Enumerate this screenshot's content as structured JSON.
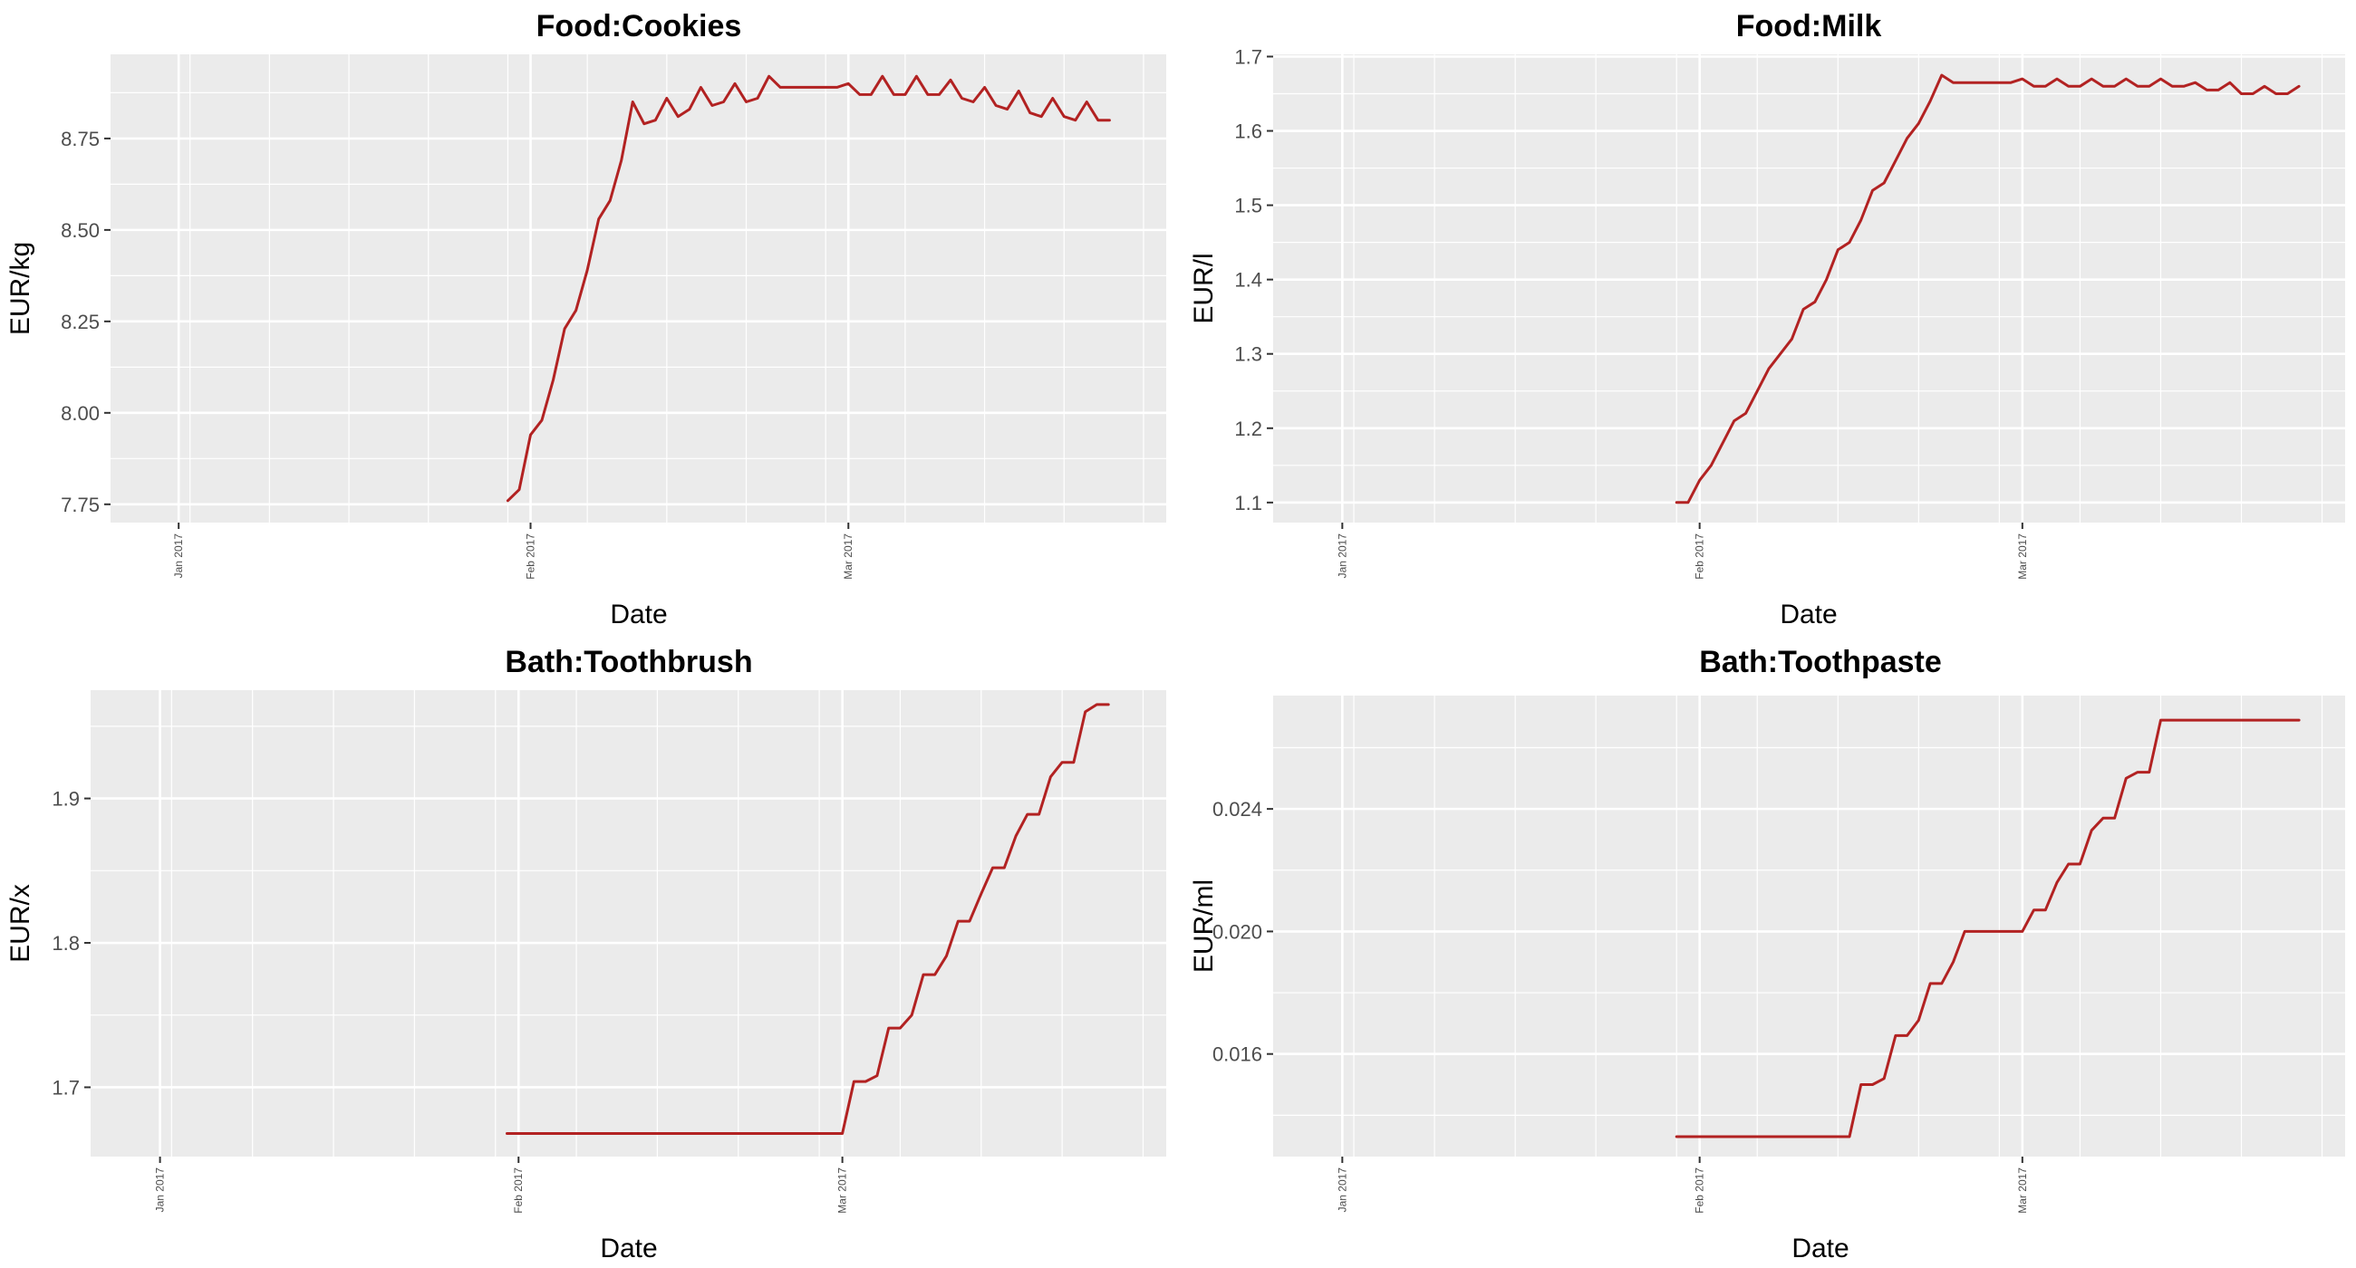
{
  "colors": {
    "series": "#b22222",
    "panel_background": "#ebebeb",
    "grid": "#ffffff"
  },
  "chart_data": [
    {
      "type": "line",
      "title": "Food:Cookies",
      "xlabel": "Date",
      "ylabel": "EUR/kg",
      "xlim": [
        "2016-12-26",
        "2017-03-29"
      ],
      "x_ticks": [
        {
          "date": "2017-01-01",
          "label": "Jan 2017"
        },
        {
          "date": "2017-02-01",
          "label": "Feb 2017"
        },
        {
          "date": "2017-03-01",
          "label": "Mar 2017"
        }
      ],
      "ylim": [
        7.7,
        8.98
      ],
      "y_ticks": [
        7.75,
        8.0,
        8.25,
        8.5,
        8.75
      ],
      "y_tick_labels": [
        "7.75",
        "8.00",
        "8.25",
        "8.50",
        "8.75"
      ],
      "grid": true,
      "x": [
        "2017-01-30",
        "2017-01-31",
        "2017-02-01",
        "2017-02-02",
        "2017-02-03",
        "2017-02-04",
        "2017-02-05",
        "2017-02-06",
        "2017-02-07",
        "2017-02-08",
        "2017-02-09",
        "2017-02-10",
        "2017-02-11",
        "2017-02-12",
        "2017-02-13",
        "2017-02-14",
        "2017-02-15",
        "2017-02-16",
        "2017-02-17",
        "2017-02-18",
        "2017-02-19",
        "2017-02-20",
        "2017-02-21",
        "2017-02-22",
        "2017-02-23",
        "2017-02-24",
        "2017-02-25",
        "2017-02-26",
        "2017-02-27",
        "2017-02-28",
        "2017-03-01",
        "2017-03-02",
        "2017-03-03",
        "2017-03-04",
        "2017-03-05",
        "2017-03-06",
        "2017-03-07",
        "2017-03-08",
        "2017-03-09",
        "2017-03-10",
        "2017-03-11",
        "2017-03-12",
        "2017-03-13",
        "2017-03-14",
        "2017-03-15",
        "2017-03-16",
        "2017-03-17",
        "2017-03-18",
        "2017-03-19",
        "2017-03-20",
        "2017-03-21",
        "2017-03-22",
        "2017-03-23",
        "2017-03-24"
      ],
      "values": [
        7.76,
        7.79,
        7.94,
        7.98,
        8.09,
        8.23,
        8.28,
        8.39,
        8.53,
        8.58,
        8.69,
        8.85,
        8.79,
        8.8,
        8.86,
        8.81,
        8.83,
        8.89,
        8.84,
        8.85,
        8.9,
        8.85,
        8.86,
        8.92,
        8.89,
        8.89,
        8.89,
        8.89,
        8.89,
        8.89,
        8.9,
        8.87,
        8.87,
        8.92,
        8.87,
        8.87,
        8.92,
        8.87,
        8.87,
        8.91,
        8.86,
        8.85,
        8.89,
        8.84,
        8.83,
        8.88,
        8.82,
        8.81,
        8.86,
        8.81,
        8.8,
        8.85,
        8.8,
        8.8
      ]
    },
    {
      "type": "line",
      "title": "Food:Milk",
      "xlabel": "Date",
      "ylabel": "EUR/l",
      "xlim": [
        "2016-12-26",
        "2017-03-29"
      ],
      "x_ticks": [
        {
          "date": "2017-01-01",
          "label": "Jan 2017"
        },
        {
          "date": "2017-02-01",
          "label": "Feb 2017"
        },
        {
          "date": "2017-03-01",
          "label": "Mar 2017"
        }
      ],
      "ylim": [
        1.073,
        1.703
      ],
      "y_ticks": [
        1.1,
        1.2,
        1.3,
        1.4,
        1.5,
        1.6,
        1.7
      ],
      "y_tick_labels": [
        "1.1",
        "1.2",
        "1.3",
        "1.4",
        "1.5",
        "1.6",
        "1.7"
      ],
      "grid": true,
      "x": [
        "2017-01-30",
        "2017-01-31",
        "2017-02-01",
        "2017-02-02",
        "2017-02-03",
        "2017-02-04",
        "2017-02-05",
        "2017-02-06",
        "2017-02-07",
        "2017-02-08",
        "2017-02-09",
        "2017-02-10",
        "2017-02-11",
        "2017-02-12",
        "2017-02-13",
        "2017-02-14",
        "2017-02-15",
        "2017-02-16",
        "2017-02-17",
        "2017-02-18",
        "2017-02-19",
        "2017-02-20",
        "2017-02-21",
        "2017-02-22",
        "2017-02-23",
        "2017-02-24",
        "2017-02-25",
        "2017-02-26",
        "2017-02-27",
        "2017-02-28",
        "2017-03-01",
        "2017-03-02",
        "2017-03-03",
        "2017-03-04",
        "2017-03-05",
        "2017-03-06",
        "2017-03-07",
        "2017-03-08",
        "2017-03-09",
        "2017-03-10",
        "2017-03-11",
        "2017-03-12",
        "2017-03-13",
        "2017-03-14",
        "2017-03-15",
        "2017-03-16",
        "2017-03-17",
        "2017-03-18",
        "2017-03-19",
        "2017-03-20",
        "2017-03-21",
        "2017-03-22",
        "2017-03-23",
        "2017-03-24",
        "2017-03-25"
      ],
      "values": [
        1.1,
        1.1,
        1.13,
        1.15,
        1.18,
        1.21,
        1.22,
        1.25,
        1.28,
        1.3,
        1.32,
        1.36,
        1.37,
        1.4,
        1.44,
        1.45,
        1.48,
        1.52,
        1.53,
        1.56,
        1.59,
        1.61,
        1.64,
        1.675,
        1.665,
        1.665,
        1.665,
        1.665,
        1.665,
        1.665,
        1.67,
        1.66,
        1.66,
        1.67,
        1.66,
        1.66,
        1.67,
        1.66,
        1.66,
        1.67,
        1.66,
        1.66,
        1.67,
        1.66,
        1.66,
        1.665,
        1.655,
        1.655,
        1.665,
        1.65,
        1.65,
        1.66,
        1.65,
        1.65,
        1.66
      ]
    },
    {
      "type": "line",
      "title": "Bath:Toothbrush",
      "xlabel": "Date",
      "ylabel": "EUR/x",
      "xlim": [
        "2016-12-26",
        "2017-03-29"
      ],
      "x_ticks": [
        {
          "date": "2017-01-01",
          "label": "Jan 2017"
        },
        {
          "date": "2017-02-01",
          "label": "Feb 2017"
        },
        {
          "date": "2017-03-01",
          "label": "Mar 2017"
        }
      ],
      "ylim": [
        1.652,
        1.975
      ],
      "y_ticks": [
        1.7,
        1.8,
        1.9
      ],
      "y_tick_labels": [
        "1.7",
        "1.8",
        "1.9"
      ],
      "grid": true,
      "x": [
        "2017-01-31",
        "2017-03-01",
        "2017-03-02",
        "2017-03-03",
        "2017-03-04",
        "2017-03-05",
        "2017-03-06",
        "2017-03-07",
        "2017-03-08",
        "2017-03-09",
        "2017-03-10",
        "2017-03-11",
        "2017-03-12",
        "2017-03-13",
        "2017-03-14",
        "2017-03-15",
        "2017-03-16",
        "2017-03-17",
        "2017-03-18",
        "2017-03-19",
        "2017-03-20",
        "2017-03-21",
        "2017-03-22",
        "2017-03-23",
        "2017-03-24"
      ],
      "values": [
        1.668,
        1.668,
        1.704,
        1.704,
        1.708,
        1.741,
        1.741,
        1.75,
        1.778,
        1.778,
        1.791,
        1.815,
        1.815,
        1.834,
        1.852,
        1.852,
        1.874,
        1.889,
        1.889,
        1.915,
        1.925,
        1.925,
        1.96,
        1.965,
        1.965
      ]
    },
    {
      "type": "line",
      "title": "Bath:Toothpaste",
      "xlabel": "Date",
      "ylabel": "EUR/ml",
      "xlim": [
        "2016-12-26",
        "2017-03-29"
      ],
      "x_ticks": [
        {
          "date": "2017-01-01",
          "label": "Jan 2017"
        },
        {
          "date": "2017-02-01",
          "label": "Feb 2017"
        },
        {
          "date": "2017-03-01",
          "label": "Mar 2017"
        }
      ],
      "ylim": [
        0.01265,
        0.0277
      ],
      "y_ticks": [
        0.016,
        0.02,
        0.024
      ],
      "y_tick_labels": [
        "0.016",
        "0.020",
        "0.024"
      ],
      "grid": true,
      "x": [
        "2017-01-30",
        "2017-02-14",
        "2017-02-15",
        "2017-02-16",
        "2017-02-17",
        "2017-02-18",
        "2017-02-19",
        "2017-02-20",
        "2017-02-21",
        "2017-02-22",
        "2017-02-23",
        "2017-02-24",
        "2017-02-25",
        "2017-03-01",
        "2017-03-02",
        "2017-03-03",
        "2017-03-04",
        "2017-03-05",
        "2017-03-06",
        "2017-03-07",
        "2017-03-08",
        "2017-03-09",
        "2017-03-10",
        "2017-03-11",
        "2017-03-12",
        "2017-03-13",
        "2017-03-25"
      ],
      "values": [
        0.0133,
        0.0133,
        0.015,
        0.015,
        0.0152,
        0.0166,
        0.0166,
        0.0171,
        0.0183,
        0.0183,
        0.019,
        0.02,
        0.02,
        0.02,
        0.0207,
        0.0207,
        0.0216,
        0.0222,
        0.0222,
        0.0233,
        0.0237,
        0.0237,
        0.025,
        0.0252,
        0.0252,
        0.0269,
        0.0269
      ]
    }
  ]
}
